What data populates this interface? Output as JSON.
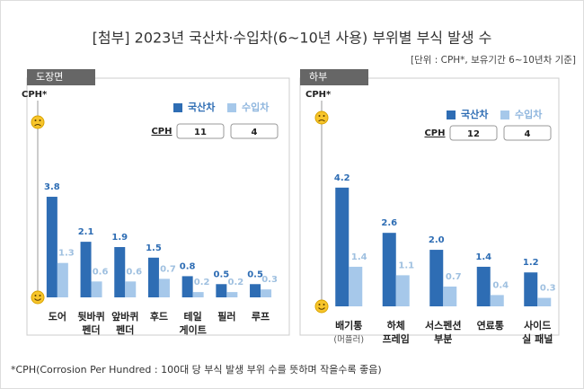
{
  "title": "[첨부] 2023년 국산차·수입차(6~10년 사용) 부위별 부식 발생 수",
  "unit_note": "[단위 : CPH*, 보유기간 6~10년차 기준]",
  "footnote": "*CPH(Corrosion Per Hundred : 100대 당 부식 발생 부위 수를 뜻하며 작을수록 좋음)",
  "chart_data": [
    {
      "type": "bar",
      "tab": "도장면",
      "ylabel": "CPH*",
      "cph_label": "CPH",
      "categories": [
        "도어",
        "뒷바퀴\n펜더",
        "앞바퀴\n펜더",
        "후드",
        "테일\n게이트",
        "필러",
        "루프"
      ],
      "ylim": [
        0,
        7.5
      ],
      "series": [
        {
          "name": "국산차",
          "color": "#2e6db4",
          "cph": 11,
          "values": [
            3.8,
            2.1,
            1.9,
            1.5,
            0.8,
            0.5,
            0.5
          ],
          "value_labels": [
            "3.8",
            "2.1",
            "1.9",
            "1.5",
            "0.8",
            "0.5",
            "0.5"
          ]
        },
        {
          "name": "수입차",
          "color": "#a6c8ea",
          "cph": 4,
          "values": [
            1.3,
            0.6,
            0.6,
            0.7,
            0.2,
            0.2,
            0.3
          ],
          "value_labels": [
            "1.3",
            "0.6",
            "0.6",
            "0.7",
            "0.2",
            "0.2",
            "0.3"
          ]
        }
      ]
    },
    {
      "type": "bar",
      "tab": "하부",
      "ylabel": "CPH*",
      "cph_label": "CPH",
      "categories": [
        "배기통\n(머플러)",
        "하체\n프레임",
        "서스펜션\n부분",
        "연료통",
        "사이드\n실 패널"
      ],
      "ylim": [
        0,
        7.5
      ],
      "series": [
        {
          "name": "국산차",
          "color": "#2e6db4",
          "cph": 12,
          "values": [
            4.2,
            2.6,
            2.0,
            1.4,
            1.2
          ],
          "value_labels": [
            "4.2",
            "2.6",
            "2.0",
            "1.4",
            "1.2"
          ]
        },
        {
          "name": "수입차",
          "color": "#a6c8ea",
          "cph": 4,
          "values": [
            1.4,
            1.1,
            0.7,
            0.4,
            0.3
          ],
          "value_labels": [
            "1.4",
            "1.1",
            "0.7",
            "0.4",
            "0.3"
          ]
        }
      ]
    }
  ]
}
